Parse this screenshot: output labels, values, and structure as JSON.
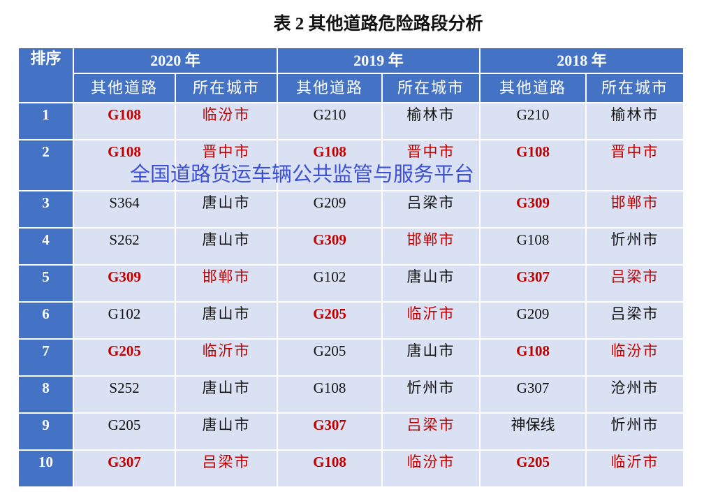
{
  "title": "表 2 其他道路危险路段分析",
  "headers": {
    "rank": "排序",
    "years": [
      "2020 年",
      "2019 年",
      "2018 年"
    ],
    "road": "其他道路",
    "city": "所在城市"
  },
  "highlight_color": "#c00000",
  "header_color": "#4472c4",
  "rows": [
    {
      "rank": "1",
      "cells": [
        {
          "road": "G108",
          "city": "临汾市",
          "hl": true
        },
        {
          "road": "G210",
          "city": "榆林市",
          "hl": false
        },
        {
          "road": "G210",
          "city": "榆林市",
          "hl": false
        }
      ]
    },
    {
      "rank": "2",
      "cells": [
        {
          "road": "G108",
          "city": "晋中市",
          "hl": true
        },
        {
          "road": "G108",
          "city": "晋中市",
          "hl": true
        },
        {
          "road": "G108",
          "city": "晋中市",
          "hl": true
        }
      ]
    },
    {
      "rank": "3",
      "cells": [
        {
          "road": "S364",
          "city": "唐山市",
          "hl": false
        },
        {
          "road": "G209",
          "city": "吕梁市",
          "hl": false
        },
        {
          "road": "G309",
          "city": "邯郸市",
          "hl": true
        }
      ]
    },
    {
      "rank": "4",
      "cells": [
        {
          "road": "S262",
          "city": "唐山市",
          "hl": false
        },
        {
          "road": "G309",
          "city": "邯郸市",
          "hl": true
        },
        {
          "road": "G108",
          "city": "忻州市",
          "hl": false
        }
      ]
    },
    {
      "rank": "5",
      "cells": [
        {
          "road": "G309",
          "city": "邯郸市",
          "hl": true
        },
        {
          "road": "G102",
          "city": "唐山市",
          "hl": false
        },
        {
          "road": "G307",
          "city": "吕梁市",
          "hl": true
        }
      ]
    },
    {
      "rank": "6",
      "cells": [
        {
          "road": "G102",
          "city": "唐山市",
          "hl": false
        },
        {
          "road": "G205",
          "city": "临沂市",
          "hl": true
        },
        {
          "road": "G209",
          "city": "吕梁市",
          "hl": false
        }
      ]
    },
    {
      "rank": "7",
      "cells": [
        {
          "road": "G205",
          "city": "临沂市",
          "hl": true
        },
        {
          "road": "G205",
          "city": "唐山市",
          "hl": false
        },
        {
          "road": "G108",
          "city": "临汾市",
          "hl": true
        }
      ]
    },
    {
      "rank": "8",
      "cells": [
        {
          "road": "S252",
          "city": "唐山市",
          "hl": false
        },
        {
          "road": "G108",
          "city": "忻州市",
          "hl": false
        },
        {
          "road": "G307",
          "city": "沧州市",
          "hl": false
        }
      ]
    },
    {
      "rank": "9",
      "cells": [
        {
          "road": "G205",
          "city": "唐山市",
          "hl": false
        },
        {
          "road": "G307",
          "city": "吕梁市",
          "hl": true
        },
        {
          "road": "神保线",
          "city": "忻州市",
          "hl": false
        }
      ]
    },
    {
      "rank": "10",
      "cells": [
        {
          "road": "G307",
          "city": "吕梁市",
          "hl": true
        },
        {
          "road": "G108",
          "city": "临汾市",
          "hl": true
        },
        {
          "road": "G205",
          "city": "临沂市",
          "hl": true
        }
      ]
    }
  ],
  "watermark": "全国道路货运车辆公共监管与服务平台"
}
